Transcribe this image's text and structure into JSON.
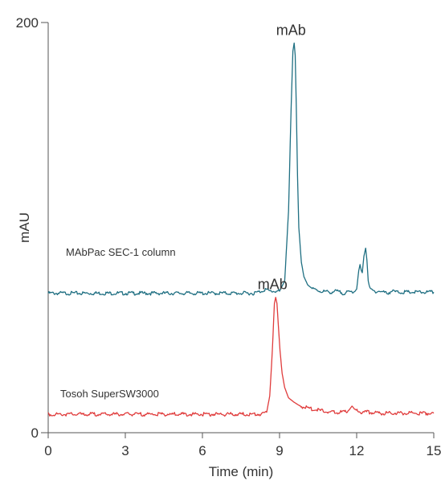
{
  "chart_data": {
    "type": "line",
    "title": "",
    "xlabel": "Time (min)",
    "ylabel": "mAU",
    "xlim": [
      0,
      15
    ],
    "ylim": [
      0,
      200
    ],
    "x_ticks": [
      "0",
      "3",
      "6",
      "9",
      "12",
      "15"
    ],
    "y_ticks": [
      "0",
      "200"
    ],
    "grid": false,
    "legend": "none",
    "series": [
      {
        "label": "MAbPac SEC-1 column",
        "color": "#1f6f82",
        "peak_label": "mAb",
        "x": [
          0,
          8.0,
          8.3,
          8.45,
          8.6,
          9.0,
          9.2,
          9.35,
          9.45,
          9.52,
          9.57,
          9.61,
          9.65,
          9.7,
          9.75,
          9.85,
          9.95,
          10.1,
          10.3,
          10.6,
          11.0,
          11.2,
          11.5,
          11.9,
          12.0,
          12.08,
          12.13,
          12.18,
          12.22,
          12.28,
          12.35,
          12.4,
          12.45,
          12.52,
          12.65,
          12.9,
          13.2,
          13.35,
          13.6,
          15
        ],
        "y": [
          68,
          68,
          69,
          70,
          69,
          69,
          74,
          108,
          158,
          186,
          190,
          184,
          160,
          125,
          100,
          83,
          76,
          72,
          70,
          69,
          68.5,
          69,
          68,
          69,
          70,
          79,
          82,
          79,
          78,
          86,
          90,
          84,
          74,
          70,
          69,
          69,
          68,
          69,
          68.5,
          68.5
        ]
      },
      {
        "label": "Tosoh SuperSW3000",
        "color": "#e03c3c",
        "peak_label": "mAb",
        "x": [
          0,
          8.0,
          8.3,
          8.5,
          8.62,
          8.72,
          8.8,
          8.85,
          8.9,
          8.95,
          9.02,
          9.1,
          9.2,
          9.35,
          9.55,
          9.8,
          10.1,
          10.5,
          11.0,
          11.5,
          11.7,
          11.82,
          11.95,
          12.2,
          12.5,
          13.0,
          15
        ],
        "y": [
          9,
          9,
          9,
          10,
          18,
          40,
          63,
          66,
          63,
          53,
          40,
          29,
          22,
          17,
          15,
          13,
          12,
          11,
          10,
          10,
          11,
          13,
          11,
          10,
          10,
          9.5,
          9.5
        ]
      }
    ]
  }
}
